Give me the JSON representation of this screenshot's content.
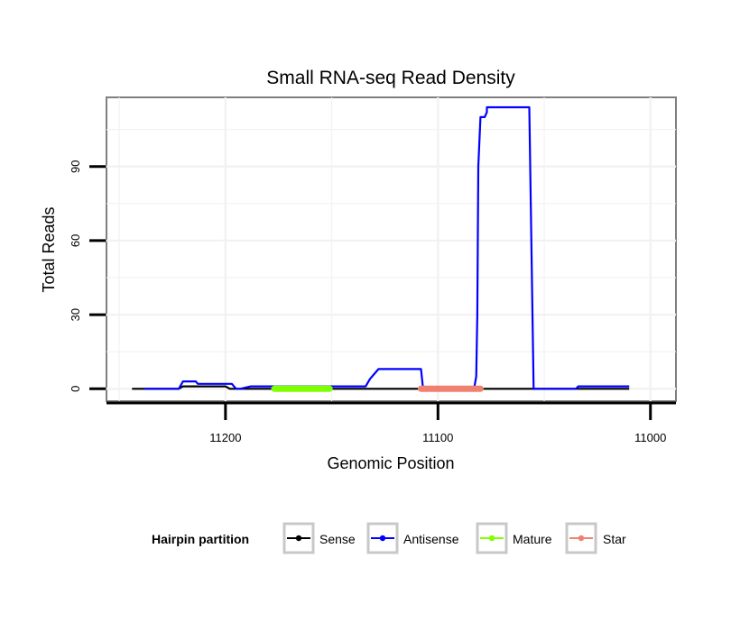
{
  "chart_data": {
    "type": "line",
    "title": "Small RNA-seq Read Density",
    "xlabel": "Genomic Position",
    "ylabel": "Total Reads",
    "xlim": [
      11256,
      10988
    ],
    "ylim": [
      -5,
      118
    ],
    "x_reversed": true,
    "xticks": [
      11200,
      11100,
      11000
    ],
    "xtick_labels": [
      "11200",
      "11100",
      "11000"
    ],
    "yticks": [
      0,
      30,
      60,
      90
    ],
    "ytick_labels": [
      "0",
      "30",
      "60",
      "90"
    ],
    "legend": {
      "title": "Hairpin partition",
      "position": "bottom",
      "entries": [
        "Sense",
        "Antisense",
        "Mature",
        "Star"
      ]
    },
    "series": [
      {
        "name": "Sense",
        "color": "#000000",
        "kind": "line",
        "x": [
          11244,
          11222,
          11220,
          11200,
          11198,
          11010
        ],
        "y": [
          0,
          0,
          1,
          1,
          0,
          0
        ]
      },
      {
        "name": "Antisense",
        "color": "#0000ff",
        "kind": "line",
        "x": [
          11238,
          11222,
          11220,
          11214,
          11213,
          11197,
          11195,
          11193,
          11188,
          11134,
          11132,
          11130,
          11128,
          11108,
          11107,
          11083,
          11082,
          11081.5,
          11081,
          11080,
          11079,
          11078,
          11077,
          11077,
          11076,
          11075,
          11057,
          11055,
          11054,
          11035,
          11034,
          11010
        ],
        "y": [
          0,
          0,
          3,
          3,
          2,
          2,
          0,
          0,
          1,
          1,
          4,
          6,
          8,
          8,
          0,
          0,
          5,
          30,
          90,
          110,
          110,
          110,
          112,
          114,
          114,
          114,
          114,
          0,
          0,
          0,
          1,
          1
        ]
      },
      {
        "name": "Mature",
        "color": "#7fff00",
        "kind": "segment",
        "x": [
          11177,
          11151
        ],
        "y": [
          0,
          0
        ]
      },
      {
        "name": "Star",
        "color": "#f08070",
        "kind": "segment",
        "x": [
          11108,
          11080
        ],
        "y": [
          0,
          0
        ]
      }
    ]
  }
}
